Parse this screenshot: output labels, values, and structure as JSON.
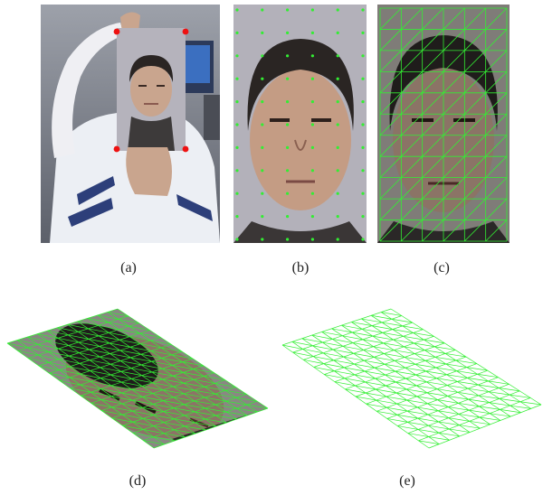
{
  "figure": {
    "captions": {
      "a": "(a)",
      "b": "(b)",
      "c": "(c)",
      "d": "(d)",
      "e": "(e)"
    }
  },
  "colors": {
    "mesh": "#33ee33",
    "marker": "#ee1111",
    "skin": "#c9a58e",
    "hair": "#2a2523",
    "shirt_light": "#e8e8ee",
    "shirt_stripe": "#2d3f7a",
    "room": "#7b808c",
    "photo_bg": "#b5b3bc"
  },
  "mesh": {
    "grid_cols": 6,
    "grid_rows": 11,
    "sheet_cols": 11,
    "sheet_rows": 14
  }
}
